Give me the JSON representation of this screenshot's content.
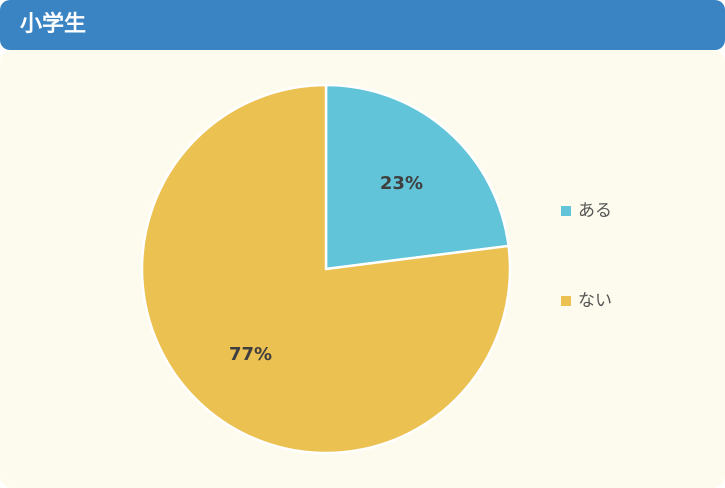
{
  "header": {
    "title": "小学生",
    "color": "#3a84c4"
  },
  "panel": {
    "background": "#fdfbee"
  },
  "chart_data": {
    "type": "pie",
    "title": "小学生",
    "categories": [
      "ある",
      "ない"
    ],
    "values": [
      23,
      77
    ],
    "value_labels": [
      "23%",
      "77%"
    ],
    "colors": [
      "#62c4d8",
      "#ebc152"
    ],
    "start_angle": "12-o'clock",
    "direction": "clockwise",
    "legend_position": "right"
  }
}
